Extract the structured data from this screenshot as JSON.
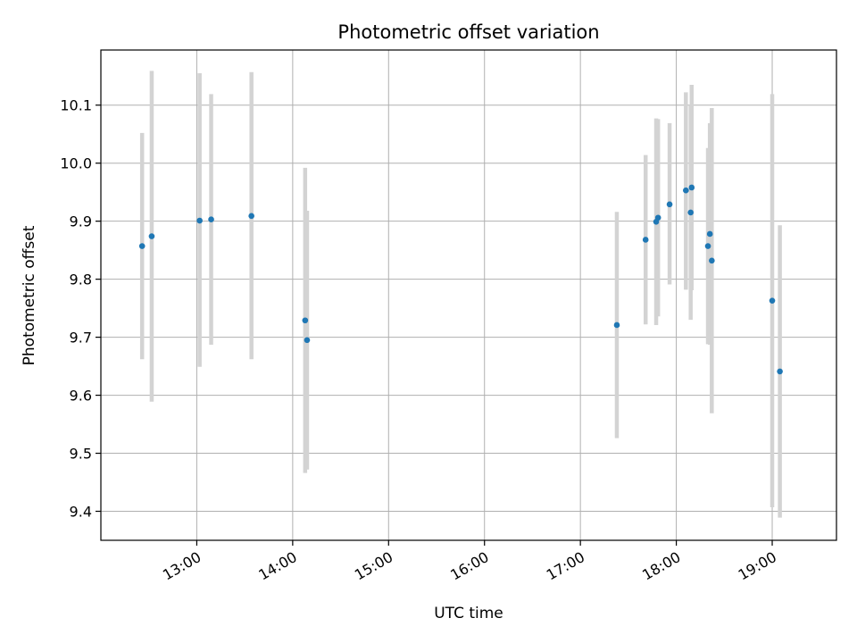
{
  "chart_data": {
    "type": "scatter",
    "title": "Photometric offset variation",
    "xlabel": "UTC time",
    "ylabel": "Photometric offset",
    "x_unit": "hours UTC",
    "xlim": [
      12.0,
      19.67
    ],
    "ylim": [
      9.35,
      10.195
    ],
    "x_ticks": [
      {
        "value": 13,
        "label": "13:00"
      },
      {
        "value": 14,
        "label": "14:00"
      },
      {
        "value": 15,
        "label": "15:00"
      },
      {
        "value": 16,
        "label": "16:00"
      },
      {
        "value": 17,
        "label": "17:00"
      },
      {
        "value": 18,
        "label": "18:00"
      },
      {
        "value": 19,
        "label": "19:00"
      }
    ],
    "y_ticks": [
      {
        "value": 9.4,
        "label": "9.4"
      },
      {
        "value": 9.5,
        "label": "9.5"
      },
      {
        "value": 9.6,
        "label": "9.6"
      },
      {
        "value": 9.7,
        "label": "9.7"
      },
      {
        "value": 9.8,
        "label": "9.8"
      },
      {
        "value": 9.9,
        "label": "9.9"
      },
      {
        "value": 10.0,
        "label": "10.0"
      },
      {
        "value": 10.1,
        "label": "10.1"
      }
    ],
    "grid": true,
    "point_color": "#1f77b4",
    "errorbar_color": "#d3d3d3",
    "points": [
      {
        "x": 12.43,
        "y": 9.857,
        "ylow": 9.662,
        "yhigh": 10.052
      },
      {
        "x": 12.53,
        "y": 9.874,
        "ylow": 9.589,
        "yhigh": 10.159
      },
      {
        "x": 13.03,
        "y": 9.901,
        "ylow": 9.649,
        "yhigh": 10.155
      },
      {
        "x": 13.15,
        "y": 9.903,
        "ylow": 9.687,
        "yhigh": 10.119
      },
      {
        "x": 13.57,
        "y": 9.909,
        "ylow": 9.662,
        "yhigh": 10.157
      },
      {
        "x": 14.13,
        "y": 9.729,
        "ylow": 9.466,
        "yhigh": 9.992
      },
      {
        "x": 14.15,
        "y": 9.695,
        "ylow": 9.472,
        "yhigh": 9.918
      },
      {
        "x": 17.38,
        "y": 9.721,
        "ylow": 9.526,
        "yhigh": 9.916
      },
      {
        "x": 17.68,
        "y": 9.868,
        "ylow": 9.722,
        "yhigh": 10.014
      },
      {
        "x": 17.79,
        "y": 9.899,
        "ylow": 9.721,
        "yhigh": 10.077
      },
      {
        "x": 17.81,
        "y": 9.906,
        "ylow": 9.736,
        "yhigh": 10.076
      },
      {
        "x": 17.93,
        "y": 9.929,
        "ylow": 9.791,
        "yhigh": 10.069
      },
      {
        "x": 18.1,
        "y": 9.953,
        "ylow": 9.782,
        "yhigh": 10.122
      },
      {
        "x": 18.15,
        "y": 9.915,
        "ylow": 9.73,
        "yhigh": 10.1
      },
      {
        "x": 18.16,
        "y": 9.958,
        "ylow": 9.781,
        "yhigh": 10.135
      },
      {
        "x": 18.33,
        "y": 9.857,
        "ylow": 9.688,
        "yhigh": 10.026
      },
      {
        "x": 18.35,
        "y": 9.878,
        "ylow": 9.687,
        "yhigh": 10.069
      },
      {
        "x": 18.37,
        "y": 9.832,
        "ylow": 9.569,
        "yhigh": 10.095
      },
      {
        "x": 19.0,
        "y": 9.763,
        "ylow": 9.407,
        "yhigh": 10.119
      },
      {
        "x": 19.08,
        "y": 9.641,
        "ylow": 9.389,
        "yhigh": 9.893
      }
    ]
  }
}
